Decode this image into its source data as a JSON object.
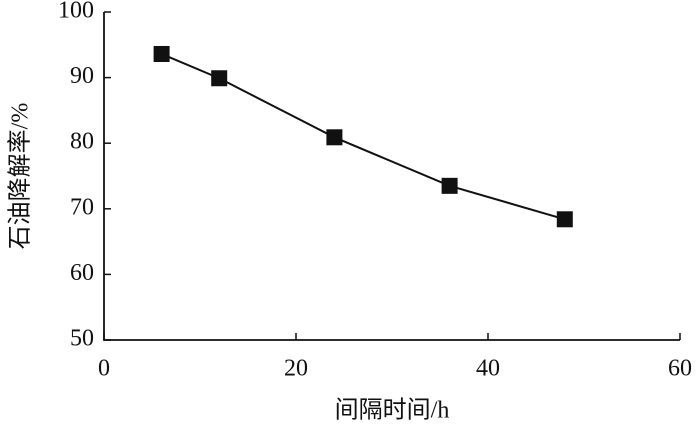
{
  "chart_data": {
    "type": "line",
    "x_label": "间隔时间/h",
    "y_label": "石油降解率/%",
    "x": [
      6,
      12,
      24,
      36,
      48
    ],
    "series": [
      {
        "color": "#111111",
        "marker": "square",
        "values": [
          93.6,
          89.9,
          80.9,
          73.5,
          68.4
        ]
      }
    ],
    "xlim": [
      0,
      60
    ],
    "xticks": [
      0,
      20,
      40,
      60
    ],
    "ylim": [
      50,
      100
    ],
    "yticks": [
      50,
      60,
      70,
      80,
      90,
      100
    ],
    "grid": false
  }
}
